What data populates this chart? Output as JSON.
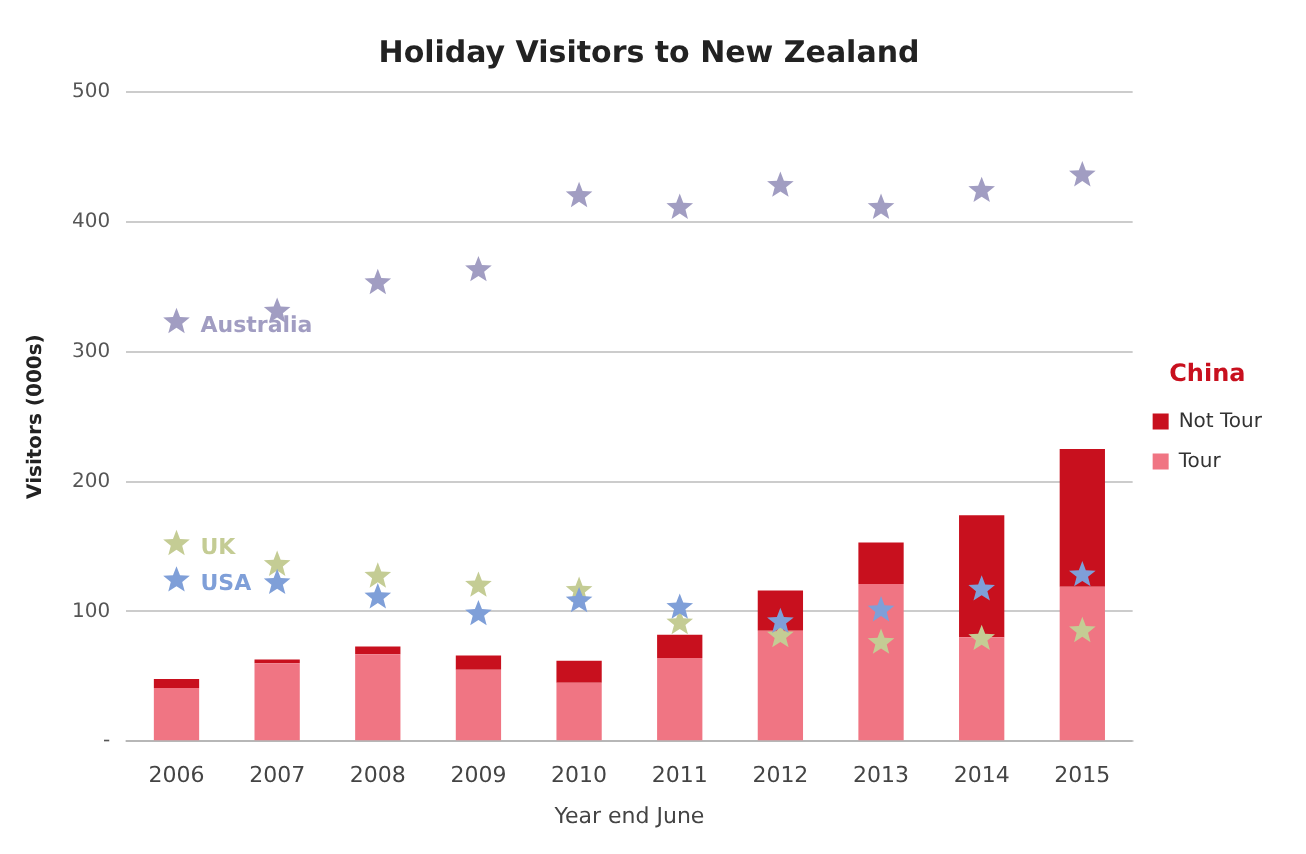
{
  "chart_data": {
    "type": "bar",
    "title": "Holiday Visitors to New Zealand",
    "xlabel": "Year end June",
    "ylabel": "Visitors (000s)",
    "legend_title": "China",
    "categories": [
      "2006",
      "2007",
      "2008",
      "2009",
      "2010",
      "2011",
      "2012",
      "2013",
      "2014",
      "2015"
    ],
    "stacked": true,
    "series": [
      {
        "name": "Tour",
        "color": "#f07583",
        "values": [
          41,
          60,
          67,
          55,
          45,
          64,
          85,
          121,
          80,
          119
        ]
      },
      {
        "name": "Not Tour",
        "color": "#c8101e",
        "values": [
          7,
          3,
          6,
          11,
          17,
          18,
          31,
          32,
          94,
          106
        ]
      },
      {
        "name": "Australia",
        "type": "scatter",
        "marker": "star",
        "color": "#a19dc2",
        "values": [
          323,
          331,
          353,
          363,
          420,
          411,
          428,
          411,
          424,
          436
        ]
      },
      {
        "name": "UK",
        "type": "scatter",
        "marker": "star",
        "color": "#c4cc94",
        "values": [
          152,
          136,
          127,
          120,
          116,
          91,
          81,
          76,
          79,
          85
        ]
      },
      {
        "name": "USA",
        "type": "scatter",
        "marker": "star",
        "color": "#7f9fd8",
        "values": [
          124,
          122,
          111,
          98,
          108,
          103,
          92,
          101,
          117,
          128
        ]
      }
    ],
    "ylim": [
      0,
      500
    ],
    "yticks": [
      {
        "value": 0,
        "label": "-"
      },
      100,
      200,
      300,
      400,
      500
    ],
    "grid": "y",
    "legend": "right"
  }
}
